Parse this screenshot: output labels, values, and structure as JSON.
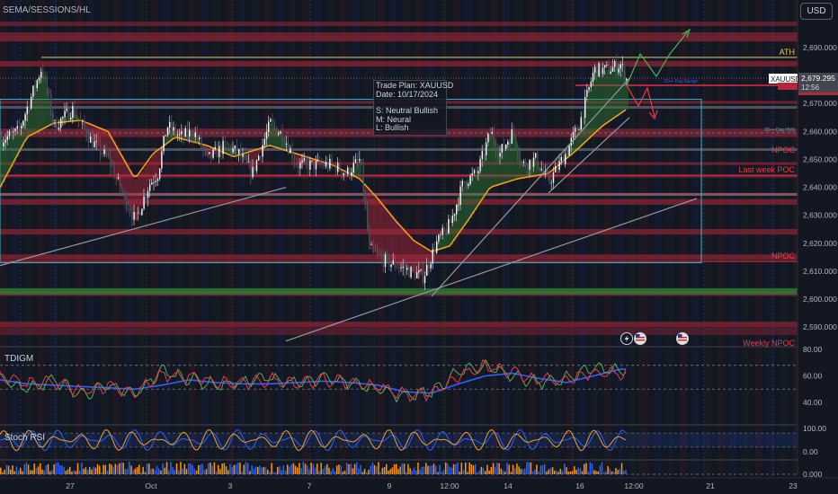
{
  "header": {
    "indicator_label": "SEMA/SESSIONS/HL",
    "currency_button": "USD"
  },
  "trade_plan": {
    "title": "Trade Plan: XAUUSD",
    "date": "Date: 10/17/2024",
    "short_term": "S: Neutral Bullish",
    "medium_term": "M: Neural",
    "long_term": "L: Bullish"
  },
  "colors": {
    "background": "#131722",
    "bull": "#ffffff",
    "resistance": "#b2283b",
    "support_green": "#2e7d32",
    "ema": "#f7a11a",
    "ath": "#e8c66a",
    "range_box": "#3cb4d0",
    "trendline": "#9598a1",
    "projection_up": "#4caf50",
    "projection_down": "#f23645",
    "rsi_blue": "#2962ff",
    "tdi_green": "#4caf50",
    "tdi_red": "#f23645",
    "volume_blue": "#2962ff",
    "volume_orange": "#ff9800"
  },
  "chart_data": [
    {
      "type": "candlestick",
      "symbol": "XAUUSD",
      "last_price": 2679.295,
      "last_price_label": "2,679.295",
      "countdown": "12:56",
      "ylim": [
        2585,
        2700
      ],
      "y_ticks": [
        2590,
        2600,
        2610,
        2620,
        2630,
        2640,
        2650,
        2660,
        2670,
        2680,
        2690
      ],
      "y_tick_labels": [
        "2,590.000",
        "2,600.000",
        "2,610.000",
        "2,620.000",
        "2,630.000",
        "2,640.000",
        "2,650.000",
        "2,660.000",
        "2,670.000",
        "2,680.000",
        "2,690.000"
      ],
      "x_tick_labels": [
        "27",
        "Oct",
        "3",
        "7",
        "9",
        "12:00",
        "14",
        "16",
        "12:00",
        "21",
        "23"
      ],
      "price_path": [
        [
          0,
          2657
        ],
        [
          20,
          2660
        ],
        [
          46,
          2683
        ],
        [
          60,
          2662
        ],
        [
          80,
          2668
        ],
        [
          100,
          2657
        ],
        [
          120,
          2650
        ],
        [
          135,
          2638
        ],
        [
          150,
          2628
        ],
        [
          165,
          2641
        ],
        [
          175,
          2645
        ],
        [
          185,
          2662
        ],
        [
          200,
          2658
        ],
        [
          215,
          2660
        ],
        [
          230,
          2650
        ],
        [
          250,
          2655
        ],
        [
          265,
          2652
        ],
        [
          280,
          2645
        ],
        [
          300,
          2663
        ],
        [
          315,
          2658
        ],
        [
          330,
          2648
        ],
        [
          350,
          2648
        ],
        [
          370,
          2648
        ],
        [
          385,
          2645
        ],
        [
          400,
          2650
        ],
        [
          410,
          2618
        ],
        [
          425,
          2614
        ],
        [
          440,
          2612
        ],
        [
          455,
          2610
        ],
        [
          470,
          2608
        ],
        [
          485,
          2620
        ],
        [
          500,
          2627
        ],
        [
          515,
          2642
        ],
        [
          530,
          2645
        ],
        [
          545,
          2660
        ],
        [
          555,
          2652
        ],
        [
          570,
          2660
        ],
        [
          580,
          2648
        ],
        [
          595,
          2650
        ],
        [
          610,
          2642
        ],
        [
          630,
          2653
        ],
        [
          645,
          2664
        ],
        [
          660,
          2682
        ],
        [
          675,
          2682
        ],
        [
          690,
          2684
        ],
        [
          697,
          2678
        ]
      ],
      "ema_path": [
        [
          0,
          2640
        ],
        [
          30,
          2658
        ],
        [
          60,
          2663
        ],
        [
          90,
          2664
        ],
        [
          120,
          2660
        ],
        [
          150,
          2643
        ],
        [
          170,
          2652
        ],
        [
          195,
          2658
        ],
        [
          230,
          2655
        ],
        [
          260,
          2651
        ],
        [
          300,
          2655
        ],
        [
          340,
          2651
        ],
        [
          370,
          2648
        ],
        [
          400,
          2643
        ],
        [
          420,
          2636
        ],
        [
          440,
          2628
        ],
        [
          460,
          2621
        ],
        [
          480,
          2617
        ],
        [
          500,
          2619
        ],
        [
          520,
          2628
        ],
        [
          545,
          2640
        ],
        [
          575,
          2643
        ],
        [
          610,
          2645
        ],
        [
          640,
          2653
        ],
        [
          670,
          2662
        ],
        [
          697,
          2668
        ]
      ],
      "levels": [
        {
          "name": "ATH",
          "price": 2686.5,
          "label": "ATH"
        },
        {
          "name": "20++ Day Range",
          "price": 2676.5,
          "label": "20++ Day Range"
        },
        {
          "name": "20++ Day HVN",
          "price": 2659.5,
          "label": "20++ Day HVN"
        },
        {
          "name": "NPOC",
          "price": 2651.5,
          "label": "NPOC"
        },
        {
          "name": "Last week POC",
          "price": 2644.3,
          "label": "Last week POC"
        },
        {
          "name": "NPOC",
          "price": 2613.5,
          "label": "NPOC"
        },
        {
          "name": "Weekly NPOC",
          "price": 2585.5,
          "label": "Weekly NPOC"
        }
      ],
      "resistance_zones": [
        [
          2692.2,
          2694.2
        ],
        [
          2683.2,
          2685.2
        ],
        [
          2670.1,
          2670.9
        ],
        [
          2658,
          2661
        ],
        [
          2648,
          2649
        ],
        [
          2643.5,
          2644.5
        ],
        [
          2637,
          2638
        ],
        [
          2633.8,
          2635.8
        ],
        [
          2623.1,
          2625.1
        ],
        [
          2614,
          2616
        ],
        [
          2601.1,
          2602.9
        ],
        [
          2589.9,
          2591.9
        ]
      ],
      "support_zone": [
        2601.1,
        2602.9
      ],
      "trendlines": [
        {
          "from": [
            0,
            2612
          ],
          "to": [
            318,
            2640
          ]
        },
        {
          "from": [
            480,
            2601
          ],
          "to": [
            700,
            2679
          ]
        },
        {
          "from": [
            318,
            2585
          ],
          "to": [
            775,
            2636
          ]
        },
        {
          "from": [
            610,
            2638
          ],
          "to": [
            700,
            2665
          ]
        }
      ],
      "range_box": {
        "x0": 0,
        "x1": 780,
        "top": 2671.5,
        "bottom": 2613
      }
    },
    {
      "type": "line",
      "name": "TDIGM",
      "label": "TDIGM",
      "ylim": [
        30,
        80
      ],
      "y_ticks": [
        40,
        60,
        80
      ],
      "y_tick_labels": [
        "40.00",
        "60.00",
        "80.00"
      ],
      "dashed_levels": [
        50,
        68
      ],
      "x": [
        0,
        30,
        60,
        90,
        120,
        150,
        180,
        210,
        240,
        270,
        300,
        330,
        360,
        390,
        420,
        450,
        480,
        510,
        540,
        570,
        600,
        630,
        660,
        690
      ],
      "series": [
        {
          "color": "blue",
          "values": [
            57,
            54,
            53,
            52,
            51,
            50,
            53,
            57,
            55,
            54,
            54,
            55,
            56,
            55,
            53,
            48,
            47,
            54,
            60,
            62,
            58,
            55,
            60,
            65
          ]
        },
        {
          "color": "green",
          "values": [
            59,
            50,
            57,
            46,
            52,
            46,
            64,
            58,
            53,
            55,
            59,
            54,
            58,
            55,
            51,
            44,
            48,
            63,
            68,
            60,
            55,
            58,
            67,
            63
          ]
        },
        {
          "color": "red",
          "values": [
            60,
            54,
            55,
            48,
            53,
            47,
            61,
            59,
            55,
            54,
            57,
            55,
            57,
            55,
            52,
            46,
            47,
            60,
            67,
            62,
            57,
            56,
            63,
            62
          ]
        }
      ]
    },
    {
      "type": "line",
      "name": "Stoch RSI",
      "label": "Stoch RSI",
      "ylim": [
        -10,
        100
      ],
      "y_ticks": [
        0,
        100
      ],
      "y_tick_labels": [
        "0.00",
        "100.00"
      ],
      "band": [
        20,
        80
      ]
    },
    {
      "type": "bar",
      "name": "Volume",
      "y_ticks": [
        0
      ],
      "y_tick_labels": [
        "0.000"
      ]
    }
  ]
}
